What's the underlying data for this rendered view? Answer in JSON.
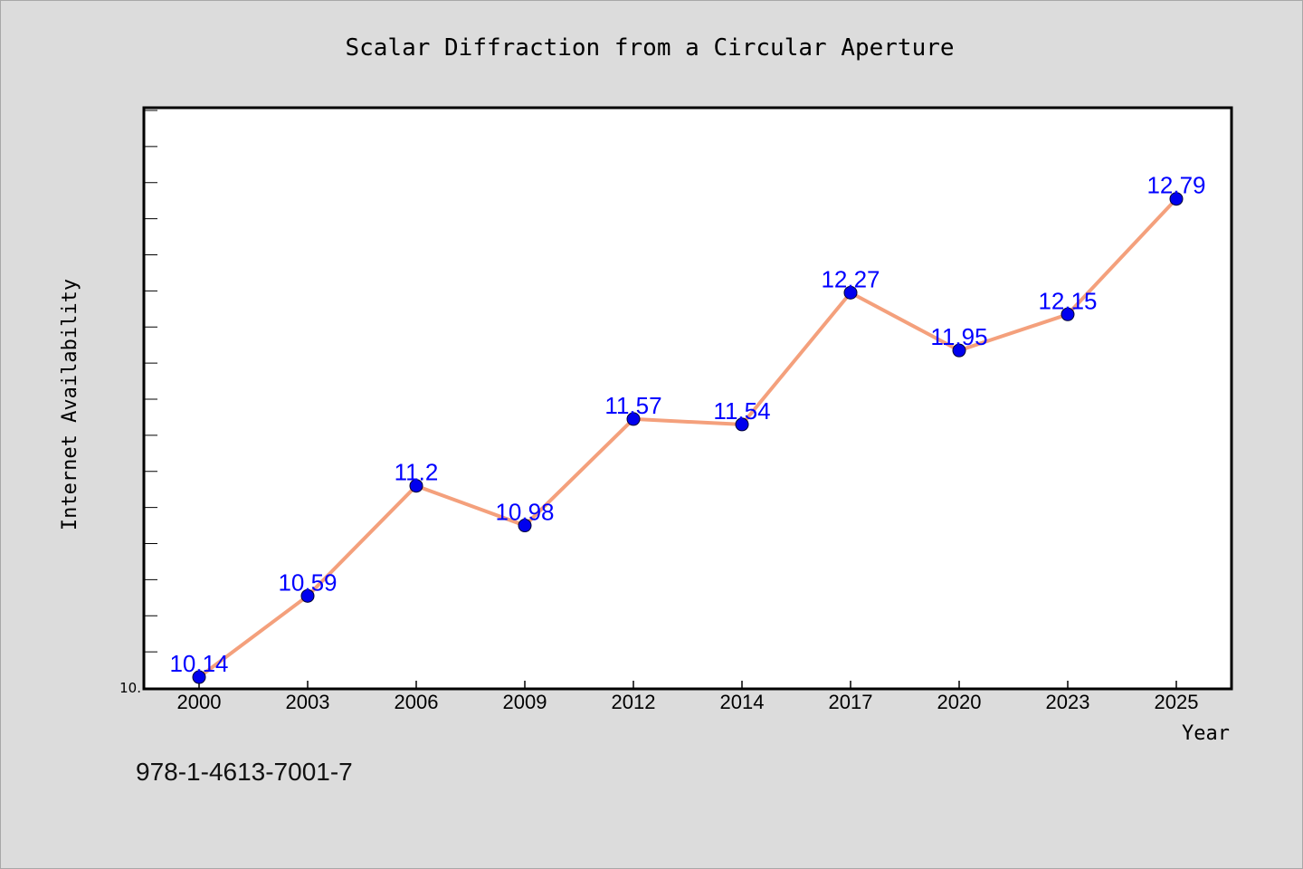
{
  "title": "Scalar Diffraction from a Circular Aperture",
  "footer_text": "978-1-4613-7001-7",
  "colors": {
    "background": "#dcdcdc",
    "plot_area": "#ffffff",
    "line": "#f4a07c",
    "marker": "#0000ee",
    "data_label": "#0000ff",
    "axis": "#000000"
  },
  "chart_data": {
    "type": "line",
    "title": "Scalar Diffraction from a Circular Aperture",
    "xlabel": "Year",
    "ylabel": "Internet Availability",
    "categories": [
      "2000",
      "2003",
      "2006",
      "2009",
      "2012",
      "2014",
      "2017",
      "2020",
      "2023",
      "2025"
    ],
    "series": [
      {
        "values": [
          10.14,
          10.59,
          11.2,
          10.98,
          11.57,
          11.54,
          12.27,
          11.95,
          12.15,
          12.79
        ],
        "labels": [
          "10.14",
          "10.59",
          "11.2",
          "10.98",
          "11.57",
          "11.54",
          "12.27",
          "11.95",
          "12.15",
          "12.79"
        ]
      }
    ],
    "ylim": [
      10.08,
      13.29
    ],
    "y_tick_labels": [
      {
        "value": 10.08,
        "text": "10."
      }
    ],
    "y_minor_tick_step": 0.2,
    "grid": false,
    "legend": "none"
  }
}
